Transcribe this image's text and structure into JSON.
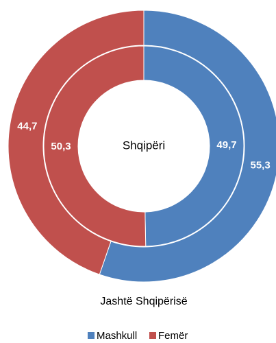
{
  "chart_data": {
    "type": "donut",
    "categories": [
      "Mashkull",
      "Femër"
    ],
    "colors": [
      "#4f81bd",
      "#c0504d"
    ],
    "series": [
      {
        "name": "Shqipëri",
        "values": [
          49.7,
          50.3
        ],
        "value_labels": [
          "49,7",
          "50,3"
        ]
      },
      {
        "name": "Jashtë Shqipërisë",
        "values": [
          55.3,
          44.7
        ],
        "value_labels": [
          "55,3",
          "44,7"
        ]
      }
    ]
  }
}
